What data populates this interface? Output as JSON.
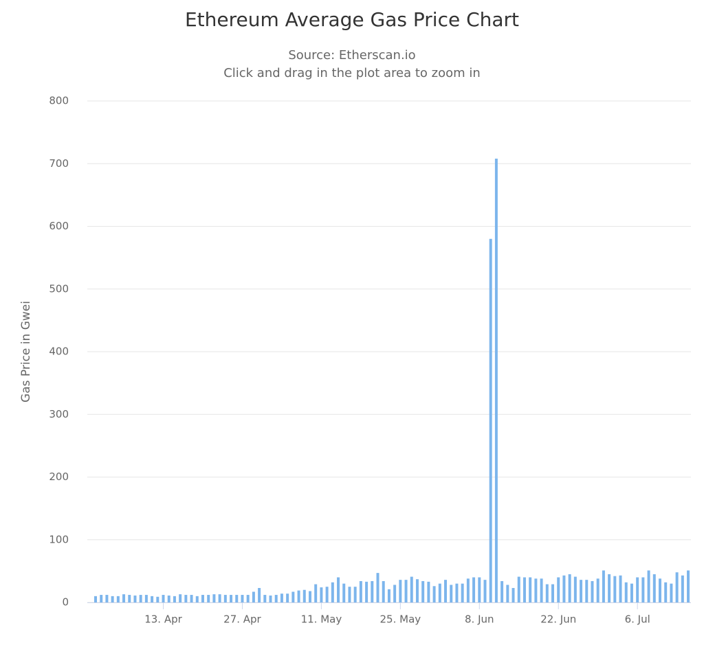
{
  "chart_data": {
    "type": "bar",
    "title": "Ethereum Average Gas Price Chart",
    "subtitle": "Source: Etherscan.io",
    "subtitle2": "Click and drag in the plot area to zoom in",
    "y_label": "Gas Price in Gwei",
    "color": "#7cb5ec",
    "grid": true,
    "categories": [
      null,
      null,
      null,
      null,
      null,
      null,
      null,
      null,
      null,
      null,
      null,
      null,
      "13. Apr",
      null,
      null,
      null,
      null,
      null,
      null,
      null,
      null,
      null,
      null,
      null,
      null,
      null,
      "27. Apr",
      null,
      null,
      null,
      null,
      null,
      null,
      null,
      null,
      null,
      null,
      null,
      null,
      null,
      "11. May",
      null,
      null,
      null,
      null,
      null,
      null,
      null,
      null,
      null,
      null,
      null,
      null,
      null,
      "25. May",
      null,
      null,
      null,
      null,
      null,
      null,
      null,
      null,
      null,
      null,
      null,
      null,
      null,
      "8. Jun",
      null,
      null,
      null,
      null,
      null,
      null,
      null,
      null,
      null,
      null,
      null,
      null,
      null,
      "22. Jun",
      null,
      null,
      null,
      null,
      null,
      null,
      null,
      null,
      null,
      null,
      null,
      null,
      null,
      "6. Jul",
      null,
      null,
      null,
      null,
      null,
      null,
      null,
      null,
      null
    ],
    "values": [
      10,
      12,
      12,
      10,
      10,
      13,
      12,
      11,
      12,
      12,
      10,
      9,
      12,
      11,
      10,
      13,
      12,
      12,
      10,
      12,
      12,
      13,
      13,
      12,
      12,
      12,
      12,
      12,
      17,
      23,
      12,
      11,
      12,
      14,
      14,
      17,
      19,
      20,
      18,
      29,
      24,
      25,
      32,
      40,
      30,
      25,
      25,
      34,
      33,
      34,
      47,
      34,
      21,
      28,
      36,
      36,
      41,
      37,
      34,
      33,
      26,
      30,
      36,
      28,
      30,
      30,
      38,
      40,
      40,
      36,
      580,
      708,
      34,
      28,
      23,
      41,
      40,
      40,
      38,
      38,
      29,
      29,
      40,
      43,
      45,
      41,
      36,
      36,
      34,
      38,
      51,
      45,
      42,
      43,
      32,
      30,
      40,
      40,
      51,
      45,
      38,
      32,
      30,
      48,
      43,
      51
    ],
    "ylim": [
      0,
      800
    ],
    "yticks": [
      0,
      100,
      200,
      300,
      400,
      500,
      600,
      700,
      800
    ]
  }
}
